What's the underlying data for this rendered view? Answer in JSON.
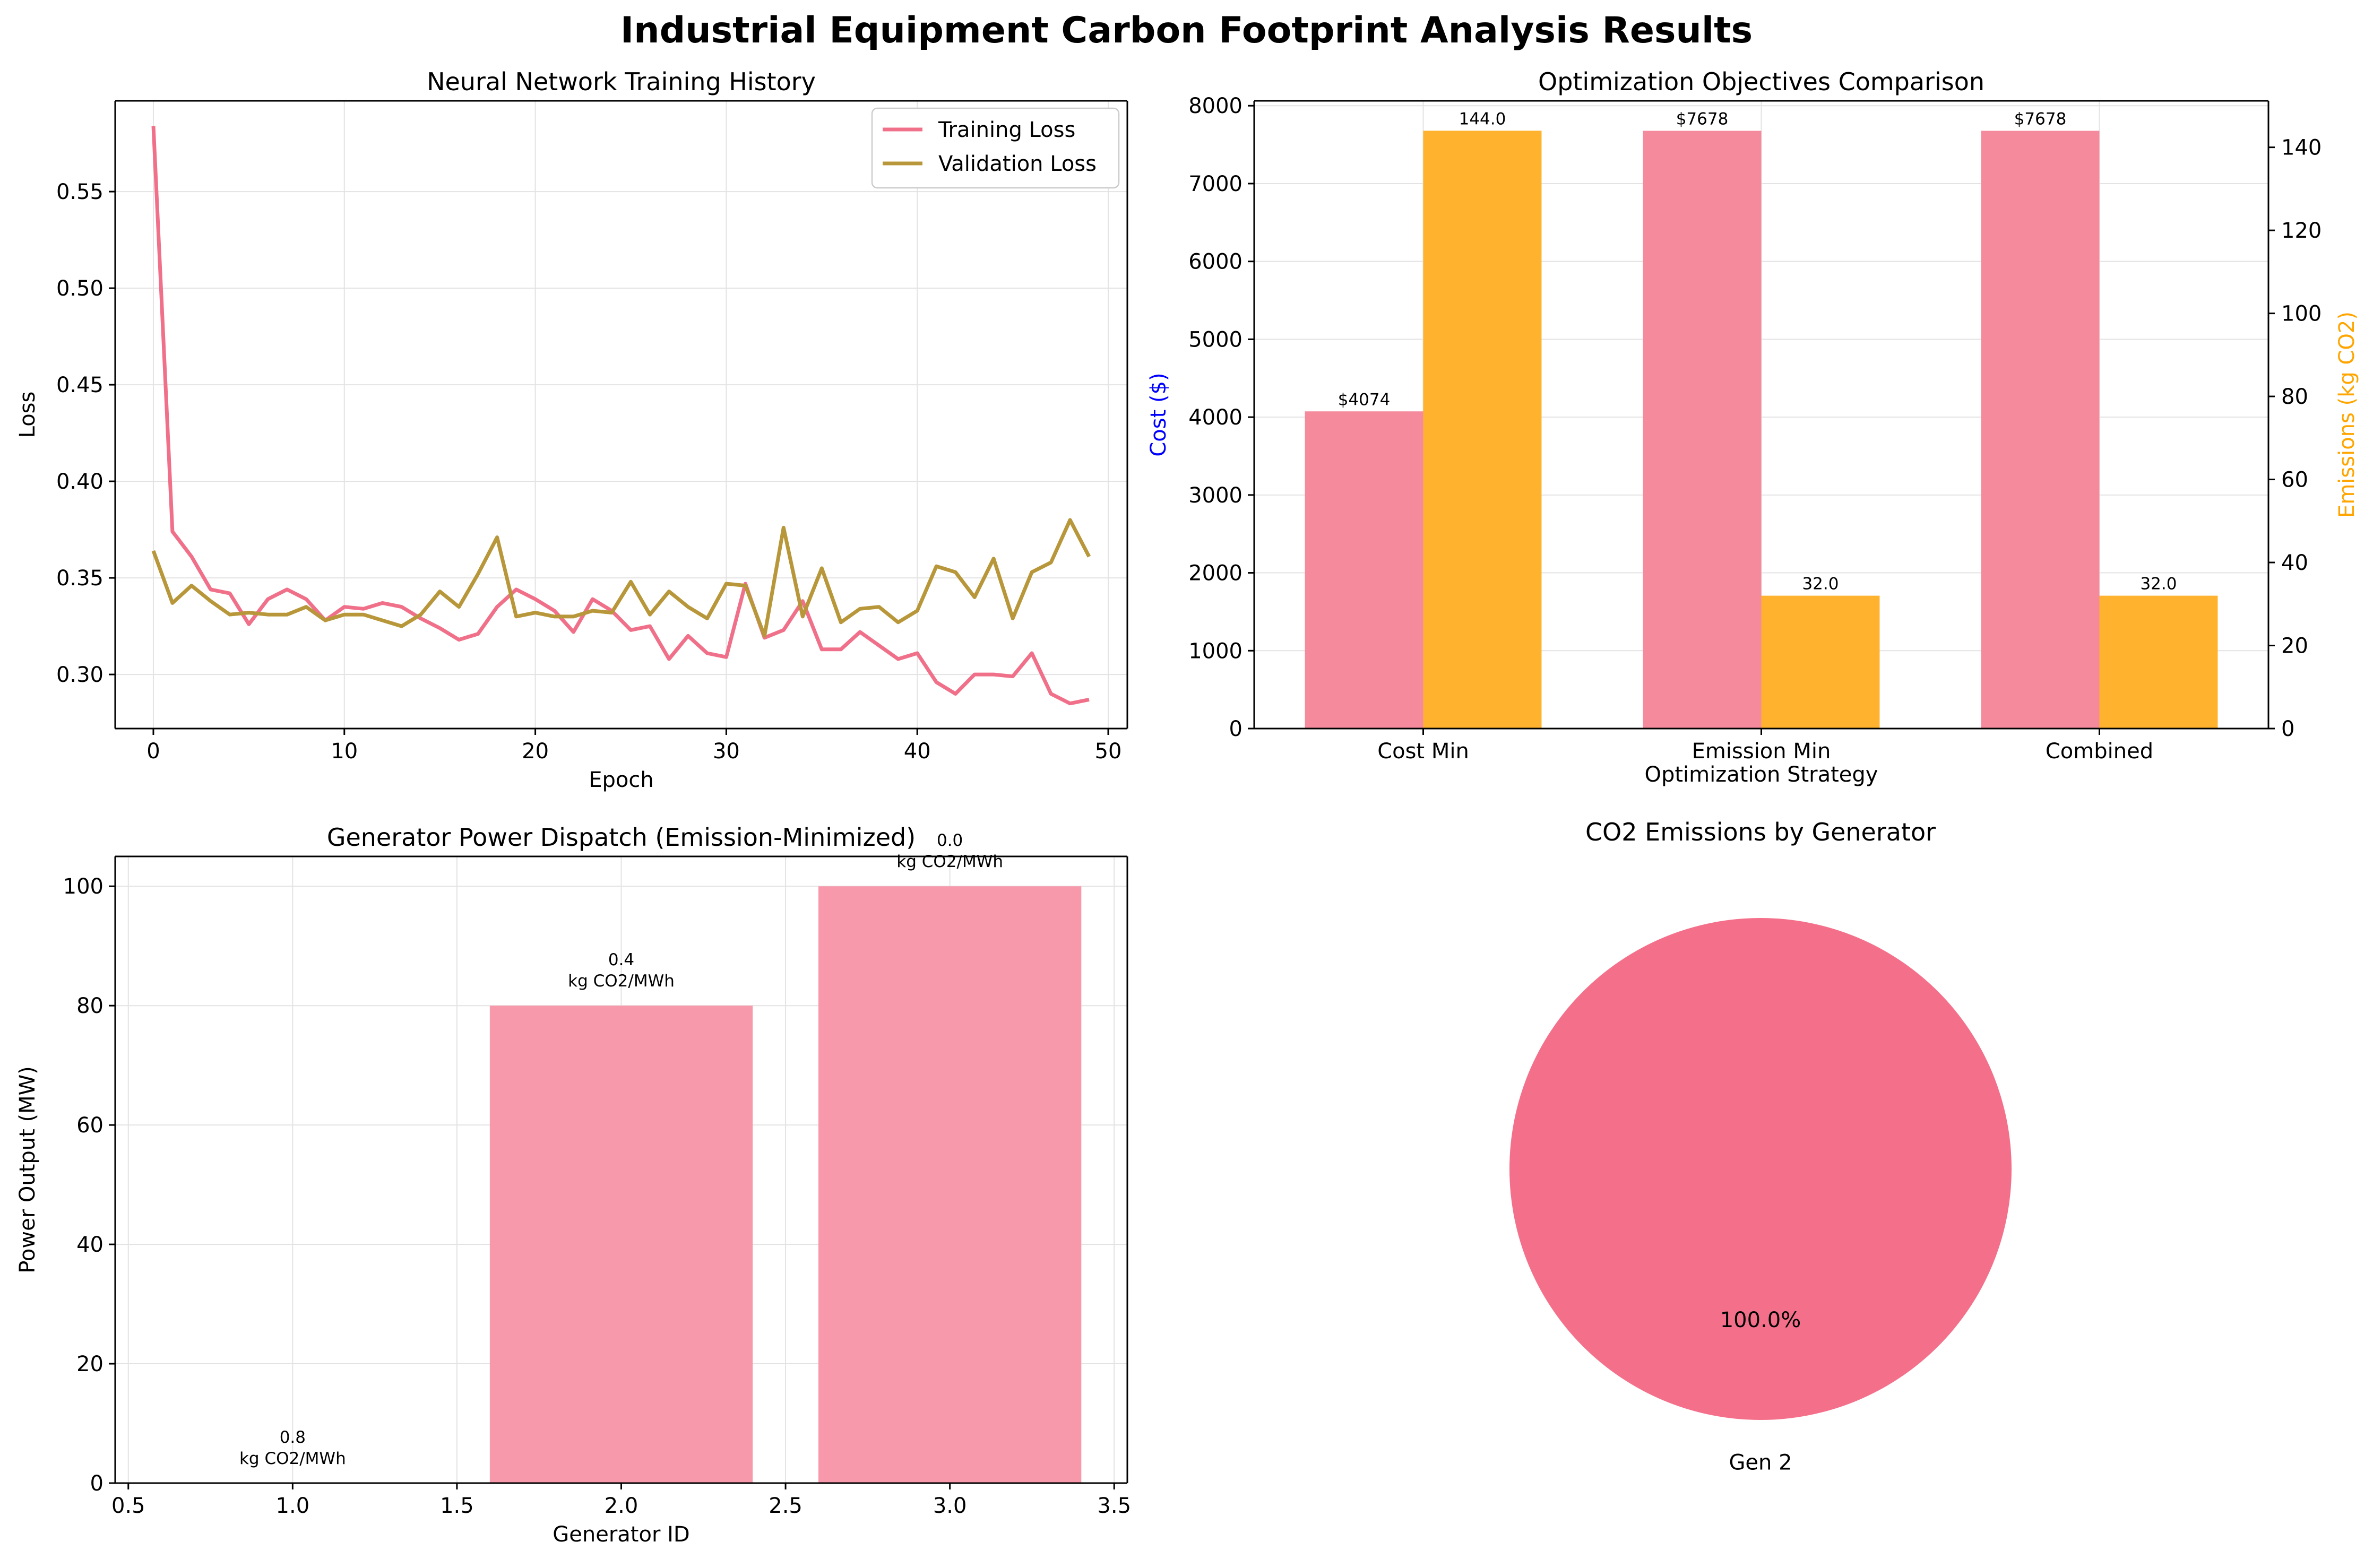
{
  "figure": {
    "title": "Industrial Equipment Carbon Footprint Analysis Results"
  },
  "chart_data": [
    {
      "type": "line",
      "title": "Neural Network Training History",
      "xlabel": "Epoch",
      "ylabel": "Loss",
      "xlim": [
        -2,
        51
      ],
      "ylim": [
        0.272,
        0.597
      ],
      "xticks": [
        0,
        10,
        20,
        30,
        40,
        50
      ],
      "yticks": [
        0.3,
        0.35,
        0.4,
        0.45,
        0.5,
        0.55
      ],
      "ytick_labels": [
        "0.30",
        "0.35",
        "0.40",
        "0.45",
        "0.50",
        "0.55"
      ],
      "grid": true,
      "legend": "upper right",
      "series": [
        {
          "name": "Training Loss",
          "color": "#f0708a",
          "x": [
            0,
            1,
            2,
            3,
            4,
            5,
            6,
            7,
            8,
            9,
            10,
            11,
            12,
            13,
            14,
            15,
            16,
            17,
            18,
            19,
            20,
            21,
            22,
            23,
            24,
            25,
            26,
            27,
            28,
            29,
            30,
            31,
            32,
            33,
            34,
            35,
            36,
            37,
            38,
            39,
            40,
            41,
            42,
            43,
            44,
            45,
            46,
            47,
            48,
            49
          ],
          "y": [
            0.584,
            0.374,
            0.361,
            0.344,
            0.342,
            0.326,
            0.339,
            0.344,
            0.339,
            0.328,
            0.335,
            0.334,
            0.337,
            0.335,
            0.329,
            0.324,
            0.318,
            0.321,
            0.335,
            0.344,
            0.339,
            0.333,
            0.322,
            0.339,
            0.333,
            0.323,
            0.325,
            0.308,
            0.32,
            0.311,
            0.309,
            0.347,
            0.319,
            0.323,
            0.338,
            0.313,
            0.313,
            0.322,
            0.315,
            0.308,
            0.311,
            0.296,
            0.29,
            0.3,
            0.3,
            0.299,
            0.311,
            0.29,
            0.285,
            0.287
          ]
        },
        {
          "name": "Validation Loss",
          "color": "#b8973a",
          "x": [
            0,
            1,
            2,
            3,
            4,
            5,
            6,
            7,
            8,
            9,
            10,
            11,
            12,
            13,
            14,
            15,
            16,
            17,
            18,
            19,
            20,
            21,
            22,
            23,
            24,
            25,
            26,
            27,
            28,
            29,
            30,
            31,
            32,
            33,
            34,
            35,
            36,
            37,
            38,
            39,
            40,
            41,
            42,
            43,
            44,
            45,
            46,
            47,
            48,
            49
          ],
          "y": [
            0.364,
            0.337,
            0.346,
            0.338,
            0.331,
            0.332,
            0.331,
            0.331,
            0.335,
            0.328,
            0.331,
            0.331,
            0.328,
            0.325,
            0.331,
            0.343,
            0.335,
            0.352,
            0.371,
            0.33,
            0.332,
            0.33,
            0.33,
            0.333,
            0.332,
            0.348,
            0.331,
            0.343,
            0.335,
            0.329,
            0.347,
            0.346,
            0.32,
            0.376,
            0.33,
            0.355,
            0.327,
            0.334,
            0.335,
            0.327,
            0.333,
            0.356,
            0.353,
            0.34,
            0.36,
            0.329,
            0.353,
            0.358,
            0.38,
            0.361
          ]
        }
      ]
    },
    {
      "type": "bar",
      "title": "Optimization Objectives Comparison",
      "xlabel": "Optimization Strategy",
      "ylabel": "Cost ($)",
      "ylabel_right": "Emissions (kg CO2)",
      "categories": [
        "Cost Min",
        "Emission Min",
        "Combined"
      ],
      "ylim": [
        0,
        8063
      ],
      "ylim_right": [
        0,
        151.2
      ],
      "yticks": [
        0,
        1000,
        2000,
        3000,
        4000,
        5000,
        6000,
        7000,
        8000
      ],
      "yticks_right": [
        0,
        20,
        40,
        60,
        80,
        100,
        120,
        140
      ],
      "grid": true,
      "series": [
        {
          "name": "Cost",
          "axis": "left",
          "color": "#f48a9c",
          "values": [
            4074,
            7678,
            7678
          ],
          "labels": [
            "$4074",
            "$7678",
            "$7678"
          ]
        },
        {
          "name": "Emissions",
          "axis": "right",
          "color": "#ffb22e",
          "values": [
            144.0,
            32.0,
            32.0
          ],
          "labels": [
            "144.0",
            "32.0",
            "32.0"
          ]
        }
      ],
      "colors": {
        "left_label": "#0000ff",
        "right_label": "#ffa500"
      }
    },
    {
      "type": "bar",
      "title": "Generator Power Dispatch (Emission-Minimized)",
      "xlabel": "Generator ID",
      "ylabel": "Power Output (MW)",
      "x": [
        1,
        2,
        3
      ],
      "values": [
        0,
        80,
        100
      ],
      "bar_labels": [
        [
          "0.8",
          "kg CO2/MWh"
        ],
        [
          "0.4",
          "kg CO2/MWh"
        ],
        [
          "0.0",
          "kg CO2/MWh"
        ]
      ],
      "xlim": [
        0.46,
        3.54
      ],
      "ylim": [
        0,
        105
      ],
      "xticks": [
        0.5,
        1.0,
        1.5,
        2.0,
        2.5,
        3.0,
        3.5
      ],
      "xtick_labels": [
        "0.5",
        "1.0",
        "1.5",
        "2.0",
        "2.5",
        "3.0",
        "3.5"
      ],
      "yticks": [
        0,
        20,
        40,
        60,
        80,
        100
      ],
      "grid": true,
      "color": "#f799aa"
    },
    {
      "type": "pie",
      "title": "CO2 Emissions by Generator",
      "labels": [
        "Gen 2"
      ],
      "values": [
        100.0
      ],
      "pct_labels": [
        "100.0%"
      ],
      "colors": [
        "#f4708a"
      ]
    }
  ]
}
